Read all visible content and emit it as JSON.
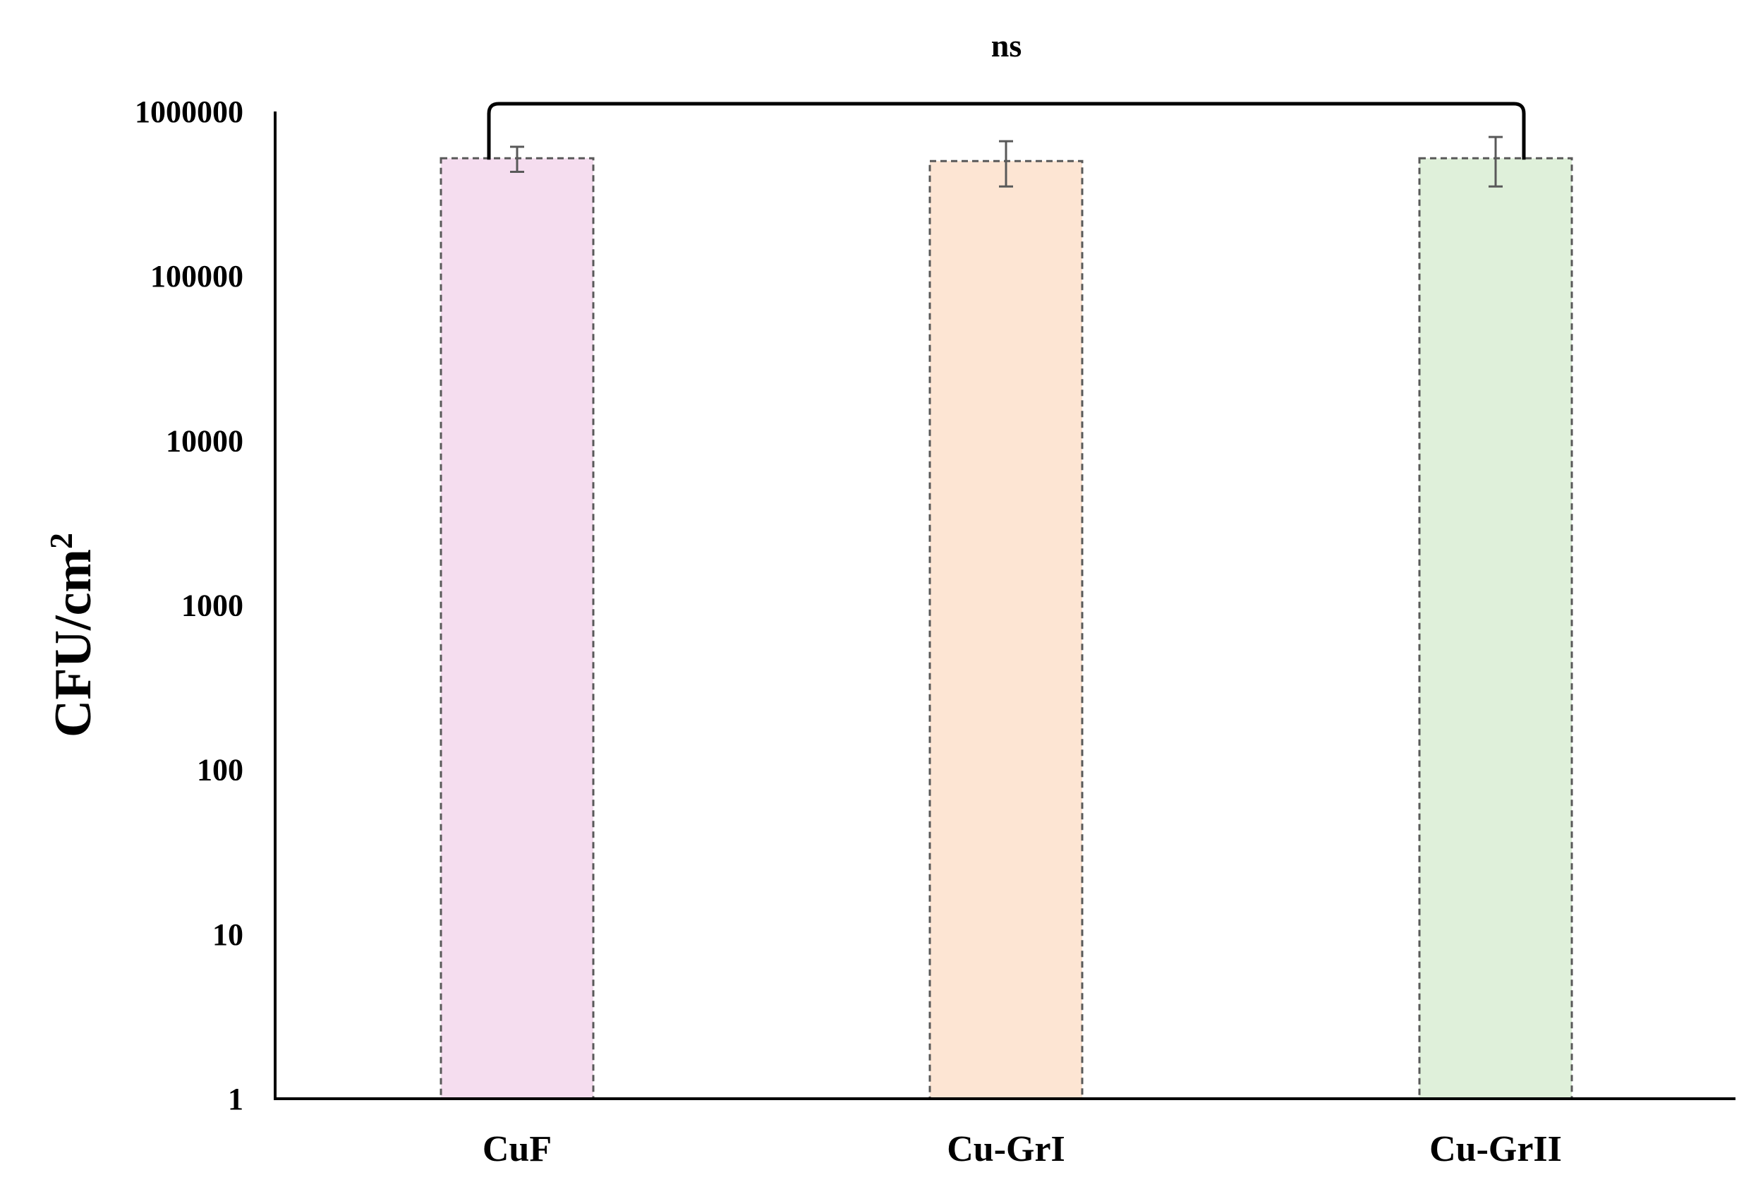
{
  "chart_data": {
    "type": "bar",
    "y_scale": "log",
    "ylim": [
      1,
      1000000
    ],
    "y_ticks": [
      1,
      10,
      100,
      1000,
      10000,
      100000,
      1000000
    ],
    "y_tick_labels": [
      "1",
      "10",
      "100",
      "1000",
      "10000",
      "100000",
      "1000000"
    ],
    "ylabel_main": "CFU/cm",
    "ylabel_superscript": "2",
    "xlabel": "",
    "title": "",
    "grid": false,
    "legend": "none",
    "categories": [
      "CuF",
      "Cu-GrI",
      "Cu-GrII"
    ],
    "values": [
      520000,
      500000,
      520000
    ],
    "error_low": [
      430000,
      350000,
      350000
    ],
    "error_high": [
      610000,
      660000,
      700000
    ],
    "colors": [
      "#f5ddef",
      "#fde5d3",
      "#dff0da"
    ],
    "bar_border_color": "#595959",
    "significance": {
      "label": "ns",
      "from_category": "CuF",
      "to_category": "Cu-GrII"
    }
  }
}
